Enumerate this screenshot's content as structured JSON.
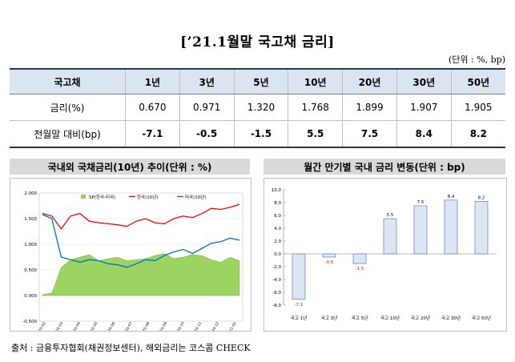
{
  "title": "[’21.1월말 국고채 금리]",
  "unit": "(단위 : %, bp)",
  "table": {
    "header": [
      "국고채",
      "1년",
      "3년",
      "5년",
      "10년",
      "20년",
      "30년",
      "50년"
    ],
    "rows": [
      [
        "금리(%)",
        "0.670",
        "0.971",
        "1.320",
        "1.768",
        "1.899",
        "1.907",
        "1.905"
      ],
      [
        "전월말 대비(bp)",
        "-7.1",
        "-0.5",
        "-1.5",
        "5.5",
        "7.5",
        "8.4",
        "8.2"
      ]
    ]
  },
  "left_chart_title": "국내외 국채금리(10년) 추이(단위 : %)",
  "right_chart_title": "월간 만기별 국내 금리 변동(단위 : bp)",
  "source": "출처 : 금융투자협회(채권정보센터), 해외금리는 코스콤 CHECK",
  "colors": {
    "korea": "#ff0000",
    "us": "#0070c0",
    "spread": "#92d050",
    "bar": "#dce6f2",
    "bar_edge": "#5b7db8",
    "neg_label": "#ff0000"
  },
  "chart_data": [
    {
      "type": "area",
      "yticks": [
        "2.000",
        "1.500",
        "1.000",
        "0.500",
        "0.000",
        "-0.500"
      ],
      "ylim": [
        -0.5,
        2.0
      ],
      "xticks": [
        "2020-02",
        "2020-03",
        "2020-04",
        "2020-05",
        "2020-06",
        "2020-07",
        "2020-08",
        "2020-09",
        "2020-10",
        "2020-11",
        "2020-12",
        "2021-01"
      ],
      "series": [
        {
          "name": "SP(한국-미국)",
          "values": [
            0.02,
            0.05,
            0.55,
            0.7,
            0.75,
            0.8,
            0.68,
            0.72,
            0.75,
            0.68,
            0.7,
            0.72,
            0.78,
            0.82,
            0.72,
            0.75,
            0.8,
            0.78,
            0.7,
            0.65,
            0.75,
            0.68
          ]
        },
        {
          "name": "한국(10년)",
          "values": [
            1.6,
            1.55,
            1.3,
            1.55,
            1.6,
            1.45,
            1.42,
            1.4,
            1.38,
            1.35,
            1.45,
            1.5,
            1.42,
            1.4,
            1.5,
            1.55,
            1.52,
            1.6,
            1.7,
            1.68,
            1.72,
            1.78
          ]
        },
        {
          "name": "미국(10년)",
          "values": [
            1.58,
            1.5,
            0.75,
            0.7,
            0.65,
            0.7,
            0.68,
            0.62,
            0.6,
            0.55,
            0.62,
            0.7,
            0.68,
            0.78,
            0.85,
            0.9,
            0.82,
            0.92,
            1.02,
            1.05,
            1.12,
            1.08
          ]
        }
      ]
    },
    {
      "type": "bar",
      "categories": [
        "국고 1년",
        "국고 3년",
        "국고 5년",
        "국고 10년",
        "국고 20년",
        "국고 30년",
        "국고 50년"
      ],
      "values": [
        -7.1,
        -0.5,
        -1.5,
        5.5,
        7.5,
        8.4,
        8.2
      ],
      "labels": [
        "-7.1",
        "-0.5",
        "-1.5",
        "5.5",
        "7.5",
        "8.4",
        "8.2"
      ],
      "yticks": [
        "10.0",
        "8.0",
        "6.0",
        "4.0",
        "2.0",
        "0.0",
        "-2.0",
        "-4.0",
        "-6.0",
        "-8.0"
      ],
      "ylim": [
        -8,
        10
      ]
    }
  ]
}
